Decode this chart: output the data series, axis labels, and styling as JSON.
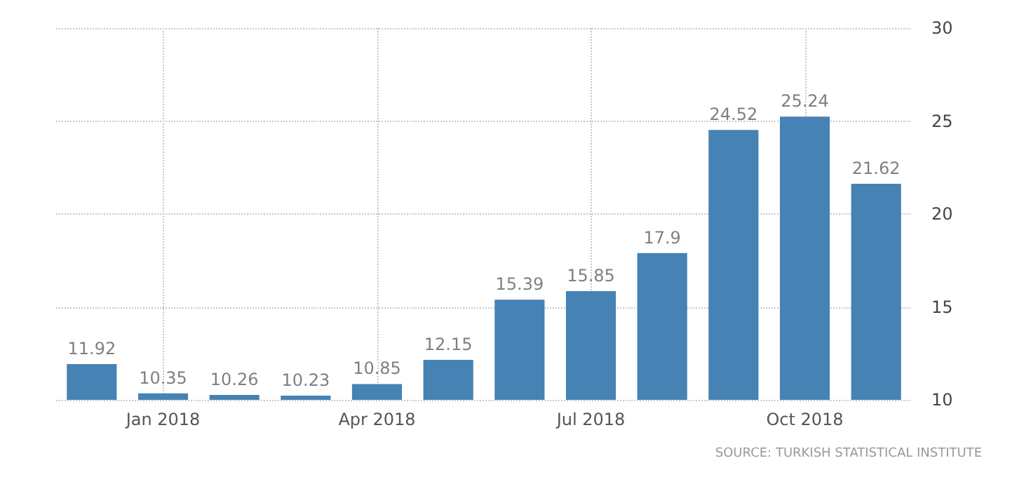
{
  "chart_data": {
    "type": "bar",
    "categories": [
      null,
      "Jan 2018",
      null,
      null,
      "Apr 2018",
      null,
      null,
      "Jul 2018",
      null,
      null,
      "Oct 2018",
      null
    ],
    "values": [
      11.92,
      10.35,
      10.26,
      10.23,
      10.85,
      12.15,
      15.39,
      15.85,
      17.9,
      24.52,
      25.24,
      21.62
    ],
    "color": "#4682b4",
    "ylim": [
      10,
      30
    ],
    "yticks": [
      10,
      15,
      20,
      25,
      30
    ],
    "grid": true,
    "data_labels": true,
    "annotations": [
      "SOURCE: TURKISH STATISTICAL INSTITUTE"
    ]
  }
}
